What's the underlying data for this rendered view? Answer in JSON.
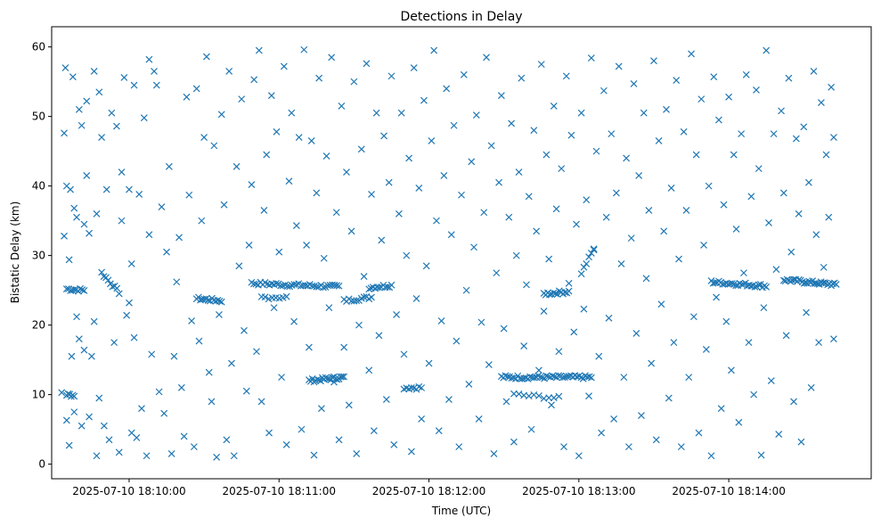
{
  "chart_data": {
    "type": "scatter",
    "title": "Detections in Delay",
    "xlabel": "Time (UTC)",
    "ylabel": "Bistatic Delay (km)",
    "x_units": "seconds after 2025-07-10 18:10:00",
    "xlim": [
      -31,
      297
    ],
    "ylim": [
      -2.1,
      62.9
    ],
    "xticks": [
      {
        "value": 0,
        "label": "2025-07-10 18:10:00"
      },
      {
        "value": 60,
        "label": "2025-07-10 18:11:00"
      },
      {
        "value": 120,
        "label": "2025-07-10 18:12:00"
      },
      {
        "value": 180,
        "label": "2025-07-10 18:13:00"
      },
      {
        "value": 240,
        "label": "2025-07-10 18:14:00"
      }
    ],
    "yticks": [
      {
        "value": 0,
        "label": "0"
      },
      {
        "value": 10,
        "label": "10"
      },
      {
        "value": 20,
        "label": "20"
      },
      {
        "value": 30,
        "label": "30"
      },
      {
        "value": 40,
        "label": "40"
      },
      {
        "value": 50,
        "label": "50"
      },
      {
        "value": 60,
        "label": "60"
      }
    ],
    "marker": "x",
    "color": "#1f77b4",
    "grid": false,
    "points": [
      [
        -27,
        10.3
      ],
      [
        -26,
        47.6
      ],
      [
        -26,
        32.8
      ],
      [
        -25.5,
        57
      ],
      [
        -25,
        40
      ],
      [
        -25,
        6.3
      ],
      [
        -24,
        29.4
      ],
      [
        -24,
        2.7
      ],
      [
        -23.5,
        39.5
      ],
      [
        -23,
        15.5
      ],
      [
        -22.5,
        55.7
      ],
      [
        -22,
        36.8
      ],
      [
        -22,
        7.5
      ],
      [
        -21,
        21.2
      ],
      [
        -21,
        35.5
      ],
      [
        -20,
        51
      ],
      [
        -20,
        18
      ],
      [
        -19,
        48.7
      ],
      [
        -19,
        5.5
      ],
      [
        -18,
        34.5
      ],
      [
        -18,
        16.4
      ],
      [
        -17,
        41.5
      ],
      [
        -17,
        52.2
      ],
      [
        -16,
        6.8
      ],
      [
        -16,
        33.2
      ],
      [
        -15,
        15.5
      ],
      [
        -14,
        56.5
      ],
      [
        -14,
        20.5
      ],
      [
        -13,
        36
      ],
      [
        -13,
        1.2
      ],
      [
        -12,
        53.5
      ],
      [
        -12,
        9.5
      ],
      [
        -11,
        47
      ],
      [
        -10,
        5.5
      ],
      [
        -9,
        39.5
      ],
      [
        -8,
        3.5
      ],
      [
        -7,
        50.5
      ],
      [
        -6,
        17.5
      ],
      [
        -5,
        48.6
      ],
      [
        -4,
        1.7
      ],
      [
        -3,
        35
      ],
      [
        -3,
        42
      ],
      [
        -2,
        55.6
      ],
      [
        -1,
        21.4
      ],
      [
        0,
        23.2
      ],
      [
        0,
        39.5
      ],
      [
        1,
        4.5
      ],
      [
        1,
        28.8
      ],
      [
        2,
        18.2
      ],
      [
        2,
        54.5
      ],
      [
        3,
        3.8
      ],
      [
        4,
        38.8
      ],
      [
        5,
        8
      ],
      [
        6,
        49.8
      ],
      [
        7,
        1.2
      ],
      [
        8,
        58.2
      ],
      [
        8,
        33
      ],
      [
        9,
        15.8
      ],
      [
        10,
        56.5
      ],
      [
        11,
        54.5
      ],
      [
        12,
        10.4
      ],
      [
        13,
        37
      ],
      [
        14,
        7.3
      ],
      [
        15,
        30.5
      ],
      [
        16,
        42.8
      ],
      [
        17,
        1.5
      ],
      [
        18,
        15.5
      ],
      [
        19,
        26.2
      ],
      [
        20,
        32.6
      ],
      [
        21,
        11
      ],
      [
        22,
        4
      ],
      [
        23,
        52.8
      ],
      [
        24,
        38.7
      ],
      [
        25,
        20.6
      ],
      [
        26,
        2.5
      ],
      [
        27,
        54
      ],
      [
        28,
        17.7
      ],
      [
        29,
        35
      ],
      [
        30,
        47
      ],
      [
        31,
        58.6
      ],
      [
        32,
        13.2
      ],
      [
        33,
        9
      ],
      [
        34,
        45.8
      ],
      [
        35,
        1
      ],
      [
        36,
        21.5
      ],
      [
        37,
        50.3
      ],
      [
        38,
        37.3
      ],
      [
        39,
        3.5
      ],
      [
        40,
        56.5
      ],
      [
        41,
        14.5
      ],
      [
        42,
        1.2
      ],
      [
        43,
        42.8
      ],
      [
        44,
        28.5
      ],
      [
        45,
        52.5
      ],
      [
        46,
        19.2
      ],
      [
        47,
        10.5
      ],
      [
        48,
        31.5
      ],
      [
        49,
        40.2
      ],
      [
        50,
        55.3
      ],
      [
        51,
        16.2
      ],
      [
        52,
        59.5
      ],
      [
        53,
        9
      ],
      [
        54,
        36.5
      ],
      [
        55,
        44.5
      ],
      [
        56,
        4.5
      ],
      [
        57,
        53
      ],
      [
        58,
        22.5
      ],
      [
        59,
        47.8
      ],
      [
        60,
        30.5
      ],
      [
        61,
        12.5
      ],
      [
        62,
        57.2
      ],
      [
        63,
        2.8
      ],
      [
        64,
        40.7
      ],
      [
        65,
        50.5
      ],
      [
        66,
        20.5
      ],
      [
        67,
        34.3
      ],
      [
        68,
        47
      ],
      [
        69,
        5
      ],
      [
        70,
        59.6
      ],
      [
        71,
        31.5
      ],
      [
        72,
        16.8
      ],
      [
        73,
        46.5
      ],
      [
        74,
        1.3
      ],
      [
        75,
        39
      ],
      [
        76,
        55.5
      ],
      [
        77,
        8
      ],
      [
        78,
        29.6
      ],
      [
        79,
        44.3
      ],
      [
        80,
        22.5
      ],
      [
        81,
        58.5
      ],
      [
        82,
        11.8
      ],
      [
        83,
        36.2
      ],
      [
        84,
        3.5
      ],
      [
        85,
        51.5
      ],
      [
        86,
        16.8
      ],
      [
        87,
        42
      ],
      [
        88,
        8.5
      ],
      [
        89,
        33.5
      ],
      [
        90,
        55
      ],
      [
        91,
        1.5
      ],
      [
        92,
        20
      ],
      [
        93,
        45.3
      ],
      [
        94,
        27
      ],
      [
        95,
        57.6
      ],
      [
        96,
        13.5
      ],
      [
        97,
        38.8
      ],
      [
        98,
        4.8
      ],
      [
        99,
        50.5
      ],
      [
        100,
        18.5
      ],
      [
        101,
        32.2
      ],
      [
        102,
        47.2
      ],
      [
        103,
        9.3
      ],
      [
        104,
        40.5
      ],
      [
        105,
        55.8
      ],
      [
        106,
        2.8
      ],
      [
        107,
        21.5
      ],
      [
        108,
        36
      ],
      [
        109,
        50.5
      ],
      [
        110,
        15.8
      ],
      [
        111,
        30
      ],
      [
        112,
        44
      ],
      [
        113,
        1.8
      ],
      [
        114,
        57
      ],
      [
        115,
        23.8
      ],
      [
        116,
        39.7
      ],
      [
        117,
        6.5
      ],
      [
        118,
        52.3
      ],
      [
        119,
        28.5
      ],
      [
        120,
        14.5
      ],
      [
        121,
        46.5
      ],
      [
        122,
        59.5
      ],
      [
        123,
        35
      ],
      [
        124,
        4.8
      ],
      [
        125,
        20.6
      ],
      [
        126,
        41.5
      ],
      [
        127,
        54
      ],
      [
        128,
        9.3
      ],
      [
        129,
        33
      ],
      [
        130,
        48.7
      ],
      [
        131,
        17.7
      ],
      [
        132,
        2.5
      ],
      [
        133,
        38.7
      ],
      [
        134,
        56
      ],
      [
        135,
        25
      ],
      [
        136,
        11.5
      ],
      [
        137,
        43.5
      ],
      [
        138,
        31.2
      ],
      [
        139,
        50.2
      ],
      [
        140,
        6.5
      ],
      [
        141,
        20.4
      ],
      [
        142,
        36.2
      ],
      [
        143,
        58.5
      ],
      [
        144,
        14.3
      ],
      [
        145,
        45.8
      ],
      [
        146,
        1.5
      ],
      [
        147,
        27.5
      ],
      [
        148,
        40.5
      ],
      [
        149,
        53
      ],
      [
        150,
        19.5
      ],
      [
        151,
        9
      ],
      [
        152,
        35.5
      ],
      [
        153,
        49
      ],
      [
        154,
        3.2
      ],
      [
        155,
        30
      ],
      [
        156,
        42
      ],
      [
        157,
        55.5
      ],
      [
        158,
        17
      ],
      [
        159,
        25.8
      ],
      [
        160,
        38.5
      ],
      [
        161,
        5
      ],
      [
        162,
        48
      ],
      [
        163,
        33.5
      ],
      [
        164,
        13.5
      ],
      [
        165,
        57.5
      ],
      [
        166,
        22
      ],
      [
        167,
        44.5
      ],
      [
        168,
        29.5
      ],
      [
        169,
        8.5
      ],
      [
        170,
        51.5
      ],
      [
        171,
        36.7
      ],
      [
        172,
        16.2
      ],
      [
        173,
        42.5
      ],
      [
        174,
        2.5
      ],
      [
        175,
        55.8
      ],
      [
        176,
        26
      ],
      [
        177,
        47.3
      ],
      [
        178,
        19
      ],
      [
        179,
        34.5
      ],
      [
        180,
        1.2
      ],
      [
        181,
        50.5
      ],
      [
        182,
        22.3
      ],
      [
        183,
        38
      ],
      [
        184,
        9.8
      ],
      [
        185,
        58.4
      ],
      [
        186,
        30.8
      ],
      [
        187,
        45
      ],
      [
        188,
        15.5
      ],
      [
        189,
        4.5
      ],
      [
        190,
        53.7
      ],
      [
        191,
        35.5
      ],
      [
        192,
        21
      ],
      [
        193,
        47.5
      ],
      [
        194,
        6.5
      ],
      [
        195,
        39
      ],
      [
        196,
        57.2
      ],
      [
        197,
        28.8
      ],
      [
        198,
        12.5
      ],
      [
        199,
        44
      ],
      [
        200,
        2.5
      ],
      [
        201,
        32.5
      ],
      [
        202,
        54.7
      ],
      [
        203,
        18.8
      ],
      [
        204,
        41.5
      ],
      [
        205,
        7
      ],
      [
        206,
        50.5
      ],
      [
        207,
        26.7
      ],
      [
        208,
        36.5
      ],
      [
        209,
        14.5
      ],
      [
        210,
        58
      ],
      [
        211,
        3.5
      ],
      [
        212,
        46.5
      ],
      [
        213,
        23
      ],
      [
        214,
        33.5
      ],
      [
        215,
        51
      ],
      [
        216,
        9.5
      ],
      [
        217,
        39.7
      ],
      [
        218,
        17.5
      ],
      [
        219,
        55.2
      ],
      [
        220,
        29.5
      ],
      [
        221,
        2.5
      ],
      [
        222,
        47.8
      ],
      [
        223,
        36.5
      ],
      [
        224,
        12.5
      ],
      [
        225,
        59
      ],
      [
        226,
        21.2
      ],
      [
        227,
        44.5
      ],
      [
        228,
        4.5
      ],
      [
        229,
        52.5
      ],
      [
        230,
        31.5
      ],
      [
        231,
        16.5
      ],
      [
        232,
        40
      ],
      [
        233,
        1.2
      ],
      [
        234,
        55.7
      ],
      [
        235,
        24
      ],
      [
        236,
        49.5
      ],
      [
        237,
        8
      ],
      [
        238,
        37.3
      ],
      [
        239,
        20.5
      ],
      [
        240,
        52.8
      ],
      [
        241,
        13.5
      ],
      [
        242,
        44.5
      ],
      [
        243,
        33.8
      ],
      [
        244,
        6
      ],
      [
        245,
        47.5
      ],
      [
        246,
        27.5
      ],
      [
        247,
        56
      ],
      [
        248,
        17.5
      ],
      [
        249,
        38.5
      ],
      [
        250,
        10
      ],
      [
        251,
        53.8
      ],
      [
        252,
        42.5
      ],
      [
        253,
        1.3
      ],
      [
        254,
        22.5
      ],
      [
        255,
        59.5
      ],
      [
        256,
        34.7
      ],
      [
        257,
        12
      ],
      [
        258,
        47.5
      ],
      [
        259,
        28
      ],
      [
        260,
        4.3
      ],
      [
        261,
        50.8
      ],
      [
        262,
        39
      ],
      [
        263,
        18.5
      ],
      [
        264,
        55.5
      ],
      [
        265,
        30.5
      ],
      [
        266,
        9
      ],
      [
        267,
        46.8
      ],
      [
        268,
        36
      ],
      [
        269,
        3.2
      ],
      [
        270,
        48.5
      ],
      [
        271,
        21.8
      ],
      [
        272,
        40.5
      ],
      [
        273,
        11
      ],
      [
        274,
        56.5
      ],
      [
        275,
        33
      ],
      [
        276,
        17.5
      ],
      [
        277,
        52
      ],
      [
        278,
        28.3
      ],
      [
        279,
        44.5
      ],
      [
        280,
        35.5
      ],
      [
        281,
        54.2
      ],
      [
        282,
        18
      ],
      [
        282,
        47
      ]
    ],
    "tracks": [
      {
        "t0": -25,
        "t1": -18,
        "y0": 25.2,
        "y1": 25.0,
        "n": 10
      },
      {
        "t0": -25,
        "t1": -22,
        "y0": 10,
        "y1": 9.9,
        "n": 6
      },
      {
        "t0": -11,
        "t1": -4,
        "y0": 27.5,
        "y1": 24.7,
        "n": 9
      },
      {
        "t0": 27,
        "t1": 37,
        "y0": 23.8,
        "y1": 23.5,
        "n": 14
      },
      {
        "t0": 49,
        "t1": 84,
        "y0": 26.0,
        "y1": 25.5,
        "n": 40
      },
      {
        "t0": 53,
        "t1": 63,
        "y0": 24.0,
        "y1": 24.0,
        "n": 8
      },
      {
        "t0": 72,
        "t1": 86,
        "y0": 12.0,
        "y1": 12.5,
        "n": 22
      },
      {
        "t0": 86,
        "t1": 97,
        "y0": 23.5,
        "y1": 24.0,
        "n": 12
      },
      {
        "t0": 96,
        "t1": 105,
        "y0": 25.4,
        "y1": 25.7,
        "n": 12
      },
      {
        "t0": 110,
        "t1": 117,
        "y0": 11.0,
        "y1": 11.0,
        "n": 8
      },
      {
        "t0": 149,
        "t1": 185,
        "y0": 12.5,
        "y1": 12.5,
        "n": 45
      },
      {
        "t0": 154,
        "t1": 172,
        "y0": 10,
        "y1": 9.5,
        "n": 10
      },
      {
        "t0": 166,
        "t1": 176,
        "y0": 24.5,
        "y1": 24.8,
        "n": 14
      },
      {
        "t0": 181,
        "t1": 186,
        "y0": 27.5,
        "y1": 31,
        "n": 6
      },
      {
        "t0": 233,
        "t1": 255,
        "y0": 26.2,
        "y1": 25.6,
        "n": 30
      },
      {
        "t0": 262,
        "t1": 283,
        "y0": 26.5,
        "y1": 25.8,
        "n": 32
      }
    ]
  }
}
